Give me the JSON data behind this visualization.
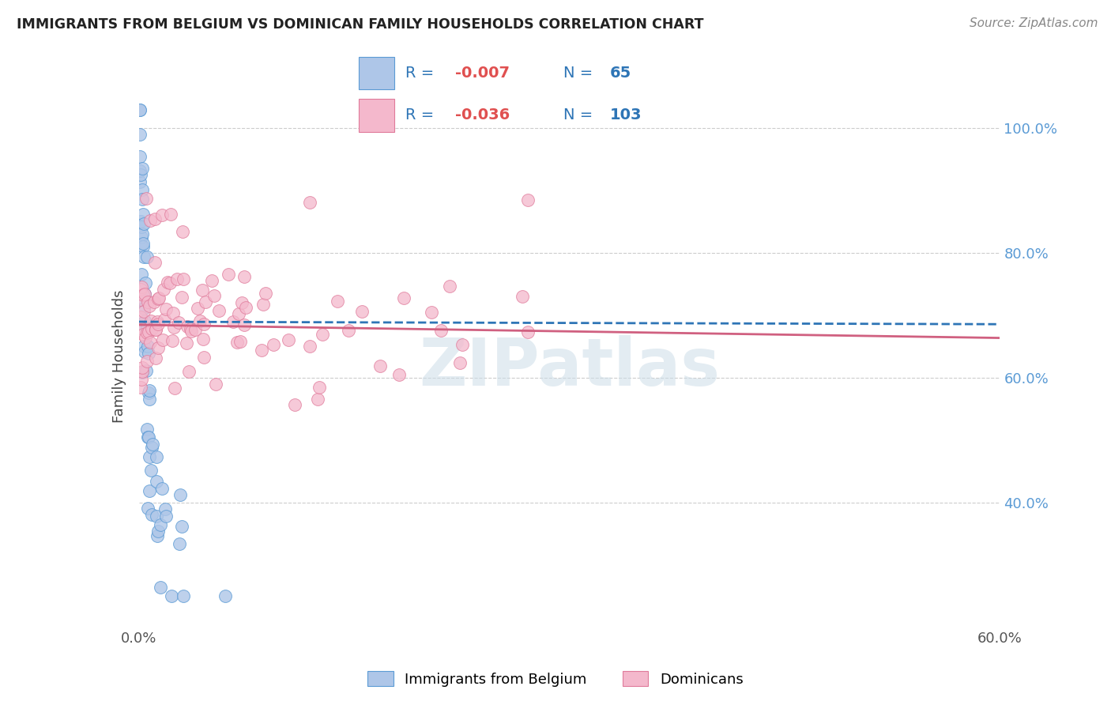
{
  "title": "IMMIGRANTS FROM BELGIUM VS DOMINICAN FAMILY HOUSEHOLDS CORRELATION CHART",
  "source": "Source: ZipAtlas.com",
  "ylabel": "Family Households",
  "legend_blue_label": "Immigrants from Belgium",
  "legend_pink_label": "Dominicans",
  "watermark": "ZIPatlas",
  "blue_color": "#aec6e8",
  "blue_edge": "#5b9bd5",
  "pink_color": "#f4b8cc",
  "pink_edge": "#e07a9a",
  "blue_line_color": "#2e75b6",
  "pink_line_color": "#d06080",
  "background_color": "#ffffff",
  "grid_color": "#cccccc",
  "xlim": [
    0.0,
    0.6
  ],
  "ylim": [
    0.2,
    1.07
  ],
  "legend_text_color": "#2e75b6",
  "legend_neg_color": "#e05050"
}
